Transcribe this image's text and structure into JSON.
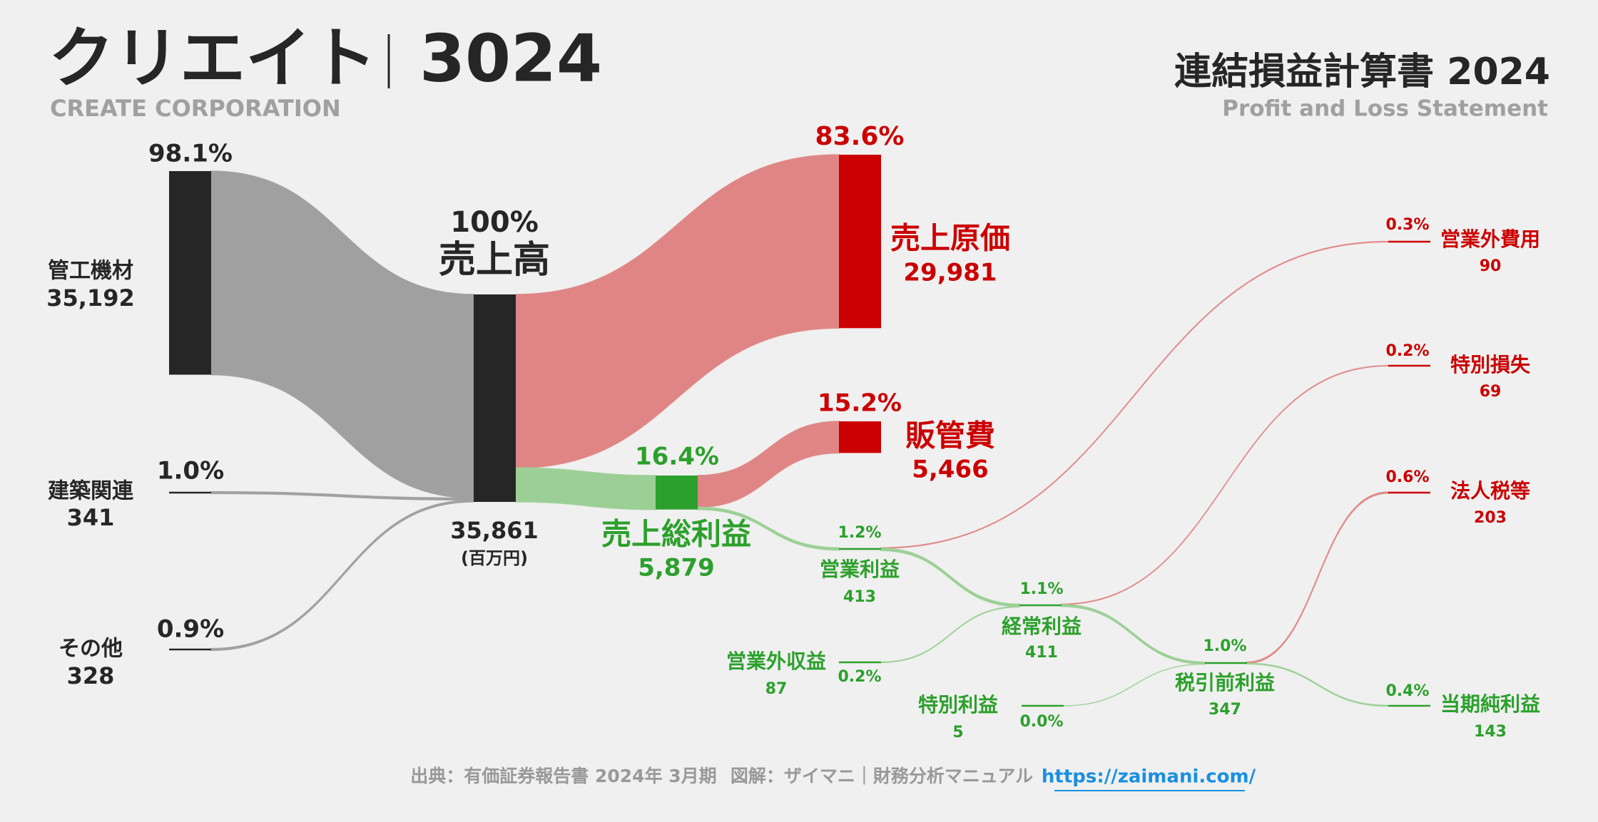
{
  "header": {
    "title": "クリエイト",
    "code": "3024",
    "subtitle": "CREATE CORPORATION",
    "statement": "連結損益計算書 2024",
    "statement_en": "Profit and Loss Statement"
  },
  "chart_data": {
    "type": "sankey",
    "nodes": [
      {
        "name": "売上高",
        "value": 35861,
        "value_label": "35,861",
        "unit": "(百万円)",
        "share": "100%",
        "color": "#262626"
      },
      {
        "name": "管工機材",
        "value": 35192,
        "value_label": "35,192",
        "share": "98.1%",
        "color": "#262626"
      },
      {
        "name": "建築関連",
        "value": 341,
        "value_label": "341",
        "share": "1.0%",
        "color": "#262626"
      },
      {
        "name": "その他",
        "value": 328,
        "value_label": "328",
        "share": "0.9%",
        "color": "#262626"
      },
      {
        "name": "売上原価",
        "value": 29981,
        "value_label": "29,981",
        "share": "83.6%",
        "color": "#cc0000"
      },
      {
        "name": "売上総利益",
        "value": 5879,
        "value_label": "5,879",
        "share": "16.4%",
        "color": "#2ca02c"
      },
      {
        "name": "販管費",
        "value": 5466,
        "value_label": "5,466",
        "share": "15.2%",
        "color": "#cc0000"
      },
      {
        "name": "営業利益",
        "value": 413,
        "value_label": "413",
        "share": "1.2%",
        "color": "#2ca02c"
      },
      {
        "name": "営業外収益",
        "value": 87,
        "value_label": "87",
        "share": "0.2%",
        "color": "#2ca02c"
      },
      {
        "name": "経常利益",
        "value": 411,
        "value_label": "411",
        "share": "1.1%",
        "color": "#2ca02c"
      },
      {
        "name": "営業外費用",
        "value": 90,
        "value_label": "90",
        "share": "0.3%",
        "color": "#cc0000"
      },
      {
        "name": "特別利益",
        "value": 5,
        "value_label": "5",
        "share": "0.0%",
        "color": "#2ca02c"
      },
      {
        "name": "税引前利益",
        "value": 347,
        "value_label": "347",
        "share": "1.0%",
        "color": "#2ca02c"
      },
      {
        "name": "特別損失",
        "value": 69,
        "value_label": "69",
        "share": "0.2%",
        "color": "#cc0000"
      },
      {
        "name": "法人税等",
        "value": 203,
        "value_label": "203",
        "share": "0.6%",
        "color": "#cc0000"
      },
      {
        "name": "当期純利益",
        "value": 143,
        "value_label": "143",
        "share": "0.4%",
        "color": "#2ca02c"
      }
    ],
    "links": [
      {
        "source": 1,
        "target": 0,
        "color": "#a0a0a0"
      },
      {
        "source": 2,
        "target": 0,
        "color": "#a0a0a0"
      },
      {
        "source": 3,
        "target": 0,
        "color": "#a0a0a0"
      },
      {
        "source": 0,
        "target": 4,
        "color": "#e08585"
      },
      {
        "source": 0,
        "target": 5,
        "color": "#9ccf96"
      },
      {
        "source": 5,
        "target": 6,
        "color": "#e08585"
      },
      {
        "source": 5,
        "target": 7,
        "color": "#9ccf96"
      },
      {
        "source": 7,
        "target": 10,
        "color": "#e08585"
      },
      {
        "source": 7,
        "target": 9,
        "color": "#9ccf96"
      },
      {
        "source": 8,
        "target": 9,
        "color": "#9ccf96"
      },
      {
        "source": 9,
        "target": 13,
        "color": "#e08585"
      },
      {
        "source": 9,
        "target": 12,
        "color": "#9ccf96"
      },
      {
        "source": 11,
        "target": 12,
        "color": "#9ccf96"
      },
      {
        "source": 12,
        "target": 14,
        "color": "#e08585"
      },
      {
        "source": 12,
        "target": 15,
        "color": "#9ccf96"
      }
    ]
  },
  "footer": {
    "source": "出典：有価証券報告書 2024年 3月期",
    "credit": "図解：ザイマニ｜財務分析マニュアル",
    "url": "https://zaimani.com/"
  }
}
